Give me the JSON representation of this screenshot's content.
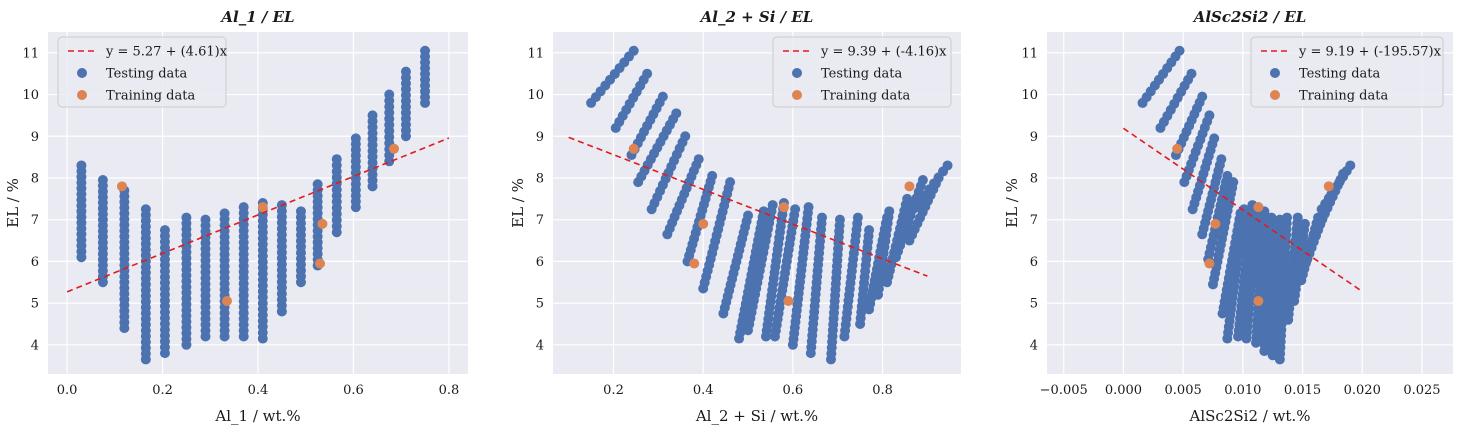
{
  "figure": {
    "background": "#ffffff",
    "axes_facecolor": "#eaeaf2",
    "grid_color": "#ffffff"
  },
  "legend_labels": {
    "testing": "Testing data",
    "training": "Training data"
  },
  "colors": {
    "testing": "#4c72b0",
    "training": "#dd8452",
    "fit": "#e31a1c"
  },
  "chart_data": [
    {
      "type": "scatter",
      "title": "Al_1 / EL",
      "xlabel": "Al_1 / wt.%",
      "ylabel": "EL / %",
      "xlim": [
        -0.04,
        0.84
      ],
      "ylim": [
        3.3,
        11.5
      ],
      "xticks": [
        0.0,
        0.2,
        0.4,
        0.6,
        0.8
      ],
      "xtick_labels": [
        "0.0",
        "0.2",
        "0.4",
        "0.6",
        "0.8"
      ],
      "yticks": [
        4,
        5,
        6,
        7,
        8,
        9,
        10,
        11
      ],
      "ytick_labels": [
        "4",
        "5",
        "6",
        "7",
        "8",
        "9",
        "10",
        "11"
      ],
      "legend_position": "upper left",
      "grid": true,
      "fit": {
        "label": "y = 5.27 + (4.61)x",
        "intercept": 5.27,
        "slope": 4.61,
        "x_range": [
          0.0,
          0.8
        ]
      },
      "testing_data": {
        "columns": [
          {
            "x": 0.03,
            "y_min": 6.1,
            "y_max": 8.3
          },
          {
            "x": 0.075,
            "y_min": 5.5,
            "y_max": 7.95
          },
          {
            "x": 0.12,
            "y_min": 4.4,
            "y_max": 7.7
          },
          {
            "x": 0.165,
            "y_min": 3.65,
            "y_max": 7.25
          },
          {
            "x": 0.205,
            "y_min": 3.8,
            "y_max": 6.75
          },
          {
            "x": 0.25,
            "y_min": 4.0,
            "y_max": 7.05
          },
          {
            "x": 0.29,
            "y_min": 4.2,
            "y_max": 7.0
          },
          {
            "x": 0.33,
            "y_min": 4.2,
            "y_max": 7.15
          },
          {
            "x": 0.37,
            "y_min": 4.2,
            "y_max": 7.3
          },
          {
            "x": 0.41,
            "y_min": 4.15,
            "y_max": 7.4
          },
          {
            "x": 0.45,
            "y_min": 4.8,
            "y_max": 7.35
          },
          {
            "x": 0.49,
            "y_min": 5.5,
            "y_max": 7.2
          },
          {
            "x": 0.525,
            "y_min": 5.9,
            "y_max": 7.85
          },
          {
            "x": 0.565,
            "y_min": 6.7,
            "y_max": 8.45
          },
          {
            "x": 0.605,
            "y_min": 7.3,
            "y_max": 8.95
          },
          {
            "x": 0.64,
            "y_min": 7.8,
            "y_max": 9.5
          },
          {
            "x": 0.675,
            "y_min": 8.4,
            "y_max": 10.0
          },
          {
            "x": 0.71,
            "y_min": 9.0,
            "y_max": 10.55
          },
          {
            "x": 0.75,
            "y_min": 9.8,
            "y_max": 11.05
          }
        ]
      },
      "training_data": [
        {
          "x": 0.115,
          "y": 7.8
        },
        {
          "x": 0.335,
          "y": 5.05
        },
        {
          "x": 0.41,
          "y": 7.3
        },
        {
          "x": 0.53,
          "y": 5.95
        },
        {
          "x": 0.535,
          "y": 6.9
        },
        {
          "x": 0.685,
          "y": 8.7
        }
      ]
    },
    {
      "type": "scatter",
      "title": "Al_2 + Si / EL",
      "xlabel": "Al_2 + Si / wt.%",
      "ylabel": "EL / %",
      "xlim": [
        0.065,
        0.975
      ],
      "ylim": [
        3.3,
        11.5
      ],
      "xticks": [
        0.2,
        0.4,
        0.6,
        0.8
      ],
      "xtick_labels": [
        "0.2",
        "0.4",
        "0.6",
        "0.8"
      ],
      "yticks": [
        4,
        5,
        6,
        7,
        8,
        9,
        10,
        11
      ],
      "ytick_labels": [
        "4",
        "5",
        "6",
        "7",
        "8",
        "9",
        "10",
        "11"
      ],
      "legend_position": "upper right",
      "grid": true,
      "fit": {
        "label": "y = 9.39 + (-4.16)x",
        "intercept": 9.39,
        "slope": -4.16,
        "x_range": [
          0.1,
          0.9
        ]
      },
      "testing_data": {
        "columns": [
          {
            "x0": 0.15,
            "y0": 9.8,
            "x1": 0.245,
            "y1": 11.05
          },
          {
            "x0": 0.205,
            "y0": 9.2,
            "x1": 0.275,
            "y1": 10.5
          },
          {
            "x0": 0.24,
            "y0": 8.55,
            "x1": 0.31,
            "y1": 9.95
          },
          {
            "x0": 0.255,
            "y0": 7.9,
            "x1": 0.34,
            "y1": 9.55
          },
          {
            "x0": 0.285,
            "y0": 7.25,
            "x1": 0.36,
            "y1": 9.0
          },
          {
            "x0": 0.32,
            "y0": 6.65,
            "x1": 0.39,
            "y1": 8.45
          },
          {
            "x0": 0.365,
            "y0": 6.0,
            "x1": 0.42,
            "y1": 8.05
          },
          {
            "x0": 0.4,
            "y0": 5.35,
            "x1": 0.46,
            "y1": 7.9
          },
          {
            "x0": 0.445,
            "y0": 4.75,
            "x1": 0.5,
            "y1": 7.1
          },
          {
            "x0": 0.48,
            "y0": 4.15,
            "x1": 0.535,
            "y1": 7.2
          },
          {
            "x0": 0.5,
            "y0": 4.35,
            "x1": 0.555,
            "y1": 7.35
          },
          {
            "x0": 0.54,
            "y0": 4.2,
            "x1": 0.58,
            "y1": 7.4
          },
          {
            "x0": 0.56,
            "y0": 4.2,
            "x1": 0.605,
            "y1": 7.25
          },
          {
            "x0": 0.6,
            "y0": 4.0,
            "x1": 0.635,
            "y1": 7.3
          },
          {
            "x0": 0.64,
            "y0": 3.8,
            "x1": 0.665,
            "y1": 7.05
          },
          {
            "x0": 0.685,
            "y0": 3.65,
            "x1": 0.705,
            "y1": 7.0
          },
          {
            "x0": 0.715,
            "y0": 4.2,
            "x1": 0.745,
            "y1": 7.05
          },
          {
            "x0": 0.75,
            "y0": 4.5,
            "x1": 0.77,
            "y1": 6.75
          },
          {
            "x0": 0.77,
            "y0": 4.85,
            "x1": 0.81,
            "y1": 7.05
          },
          {
            "x0": 0.79,
            "y0": 5.2,
            "x1": 0.815,
            "y1": 7.2
          },
          {
            "x0": 0.81,
            "y0": 5.5,
            "x1": 0.855,
            "y1": 7.5
          },
          {
            "x0": 0.83,
            "y0": 6.1,
            "x1": 0.89,
            "y1": 7.95
          },
          {
            "x0": 0.86,
            "y0": 6.5,
            "x1": 0.925,
            "y1": 8.0
          },
          {
            "x0": 0.875,
            "y0": 7.3,
            "x1": 0.945,
            "y1": 8.3
          }
        ]
      },
      "training_data": [
        {
          "x": 0.245,
          "y": 8.7
        },
        {
          "x": 0.38,
          "y": 5.95
        },
        {
          "x": 0.4,
          "y": 6.9
        },
        {
          "x": 0.58,
          "y": 7.3
        },
        {
          "x": 0.59,
          "y": 5.05
        },
        {
          "x": 0.86,
          "y": 7.8
        }
      ]
    },
    {
      "type": "scatter",
      "title": "AlSc2Si2 / EL",
      "xlabel": "AlSc2Si2 / wt.%",
      "ylabel": "EL / %",
      "xlim": [
        -0.0064,
        0.0276
      ],
      "ylim": [
        3.3,
        11.5
      ],
      "xticks": [
        -0.005,
        0.0,
        0.005,
        0.01,
        0.015,
        0.02,
        0.025
      ],
      "xtick_labels": [
        "−0.005",
        "0.000",
        "0.005",
        "0.010",
        "0.015",
        "0.020",
        "0.025"
      ],
      "yticks": [
        4,
        5,
        6,
        7,
        8,
        9,
        10,
        11
      ],
      "ytick_labels": [
        "4",
        "5",
        "6",
        "7",
        "8",
        "9",
        "10",
        "11"
      ],
      "legend_position": "upper right",
      "grid": true,
      "fit": {
        "label": "y = 9.19 + (-195.57)x",
        "intercept": 9.19,
        "slope": -195.57,
        "x_range": [
          0.0,
          0.02
        ]
      },
      "testing_data": {
        "columns": [
          {
            "x0": 0.0016,
            "y0": 9.8,
            "x1": 0.0047,
            "y1": 11.05
          },
          {
            "x0": 0.0031,
            "y0": 9.2,
            "x1": 0.0057,
            "y1": 10.5
          },
          {
            "x0": 0.0044,
            "y0": 8.55,
            "x1": 0.0066,
            "y1": 9.95
          },
          {
            "x0": 0.0051,
            "y0": 7.9,
            "x1": 0.0072,
            "y1": 9.5
          },
          {
            "x0": 0.0058,
            "y0": 7.25,
            "x1": 0.0076,
            "y1": 8.95
          },
          {
            "x0": 0.0066,
            "y0": 6.65,
            "x1": 0.0082,
            "y1": 8.45
          },
          {
            "x0": 0.0071,
            "y0": 6.05,
            "x1": 0.0087,
            "y1": 8.05
          },
          {
            "x0": 0.0075,
            "y0": 5.45,
            "x1": 0.0092,
            "y1": 7.9
          },
          {
            "x0": 0.0083,
            "y0": 4.75,
            "x1": 0.0098,
            "y1": 7.15
          },
          {
            "x0": 0.0087,
            "y0": 4.15,
            "x1": 0.0101,
            "y1": 7.25
          },
          {
            "x0": 0.0096,
            "y0": 4.2,
            "x1": 0.0108,
            "y1": 7.35
          },
          {
            "x0": 0.0103,
            "y0": 4.15,
            "x1": 0.0113,
            "y1": 7.3
          },
          {
            "x0": 0.0111,
            "y0": 4.05,
            "x1": 0.0118,
            "y1": 7.2
          },
          {
            "x0": 0.0118,
            "y0": 3.85,
            "x1": 0.0124,
            "y1": 7.05
          },
          {
            "x0": 0.0125,
            "y0": 3.75,
            "x1": 0.0131,
            "y1": 7.0
          },
          {
            "x0": 0.0131,
            "y0": 3.65,
            "x1": 0.0137,
            "y1": 7.05
          },
          {
            "x0": 0.0138,
            "y0": 4.6,
            "x1": 0.0146,
            "y1": 7.05
          },
          {
            "x0": 0.0143,
            "y0": 5.05,
            "x1": 0.0152,
            "y1": 6.9
          },
          {
            "x0": 0.0149,
            "y0": 5.55,
            "x1": 0.0163,
            "y1": 7.05
          },
          {
            "x0": 0.0154,
            "y0": 6.05,
            "x1": 0.0174,
            "y1": 7.6
          },
          {
            "x0": 0.016,
            "y0": 6.6,
            "x1": 0.0184,
            "y1": 8.1
          },
          {
            "x0": 0.0166,
            "y0": 7.25,
            "x1": 0.019,
            "y1": 8.3
          }
        ]
      },
      "training_data": [
        {
          "x": 0.0045,
          "y": 8.7
        },
        {
          "x": 0.0072,
          "y": 5.95
        },
        {
          "x": 0.0077,
          "y": 6.9
        },
        {
          "x": 0.0113,
          "y": 7.3
        },
        {
          "x": 0.0113,
          "y": 5.05
        },
        {
          "x": 0.0172,
          "y": 7.8
        }
      ]
    }
  ]
}
